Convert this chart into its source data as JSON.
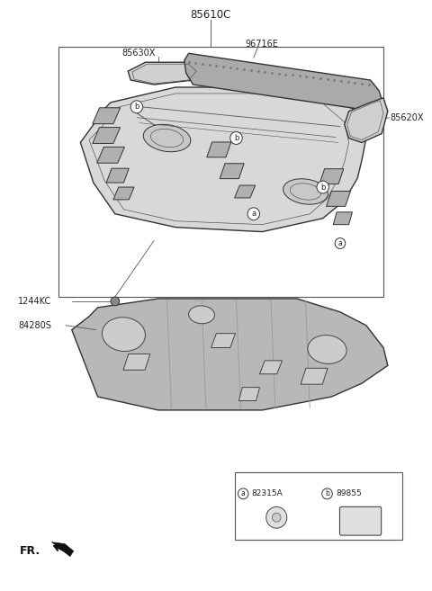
{
  "bg_color": "#ffffff",
  "line_color": "#555555",
  "part_fill": "#cccccc",
  "part_edge": "#333333",
  "white": "#ffffff",
  "title_label": "85610C",
  "label_85630X": "85630X",
  "label_96716E": "96716E",
  "label_85620X": "85620X",
  "label_1244KC": "1244KC",
  "label_84280S": "84280S",
  "label_a": "82315A",
  "label_b": "89855",
  "fr_label": "FR.",
  "fig_w": 4.8,
  "fig_h": 6.57,
  "dpi": 100
}
